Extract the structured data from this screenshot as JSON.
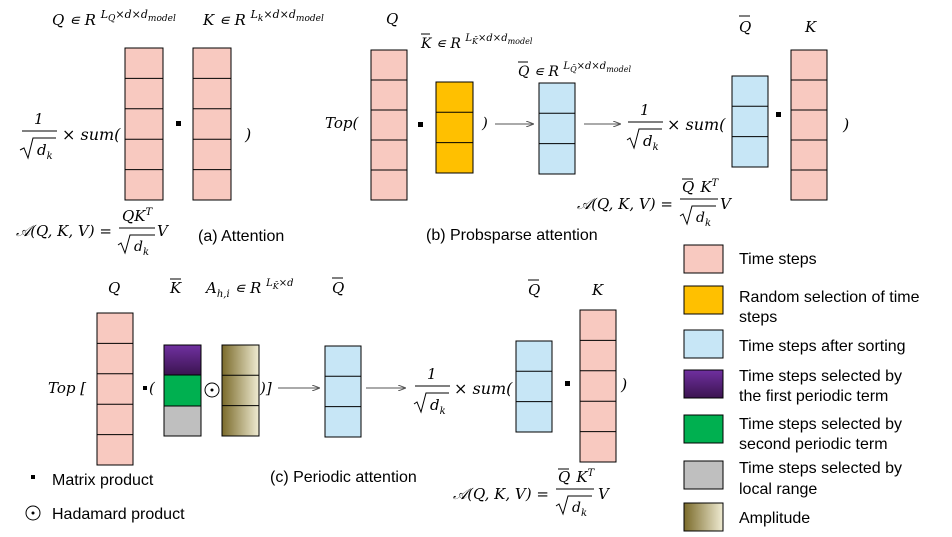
{
  "colors": {
    "time_steps": "#F8C9C0",
    "random": "#FFC000",
    "sorted": "#C7E6F6",
    "first_periodic_top": "#7030A0",
    "first_periodic_bottom": "#3B1450",
    "second_periodic": "#00B050",
    "local": "#BFBFBF",
    "amplitude_dark": "#7A6A2A",
    "amplitude_light": "#EFEBD2"
  },
  "symbols": {
    "Q": "Q",
    "K": "K",
    "Kbar": "K",
    "Qbar": "Q",
    "top": "Top",
    "one": "1",
    "sqrt_dk": "d",
    "sqrt_dk_sub": "k",
    "times_sum": "× sum(",
    "rparen": ")",
    "open_a": "Top(",
    "open_c": "Top [",
    "close_c": ")]",
    "dot": "·",
    "hadamard": "⊙",
    "A_prefix": "𝒜(Q, K, V) =",
    "V": "V",
    "QKT": "QK",
    "T": "T",
    "Q_expr_a": "Q ∊ R",
    "Q_expr_a_exp": "L",
    "Q_expr_a_sub": "Q",
    "Q_expr_a_rest": "×d×d",
    "dmodel_sub": "model",
    "K_expr_a": "K ∊ R",
    "K_expr_a_exp": "L",
    "K_expr_a_sub": "k",
    "K_expr_a_rest": "×d×d",
    "Kbar_expr": "K ∊ R",
    "Kbar_exp": "L",
    "Kbar_sub": "K̄",
    "Kbar_rest": "×d×d",
    "Qbar_expr": "Q ∊ R",
    "Qbar_exp": "L",
    "Qbar_sub": "Q̄",
    "Qbar_rest": "×d×d",
    "A_hi": "A",
    "A_hi_sub": "h,i",
    "A_hi_expr": " ∊ R",
    "A_hi_exp": "L",
    "A_hi_exp_sub": "K̄",
    "A_hi_rest": "×d"
  },
  "captions": {
    "a": "(a) Attention",
    "b": "(b) Probsparse attention",
    "c": "(c) Periodic attention"
  },
  "notes": {
    "matrix_product_symbol": "▪",
    "matrix_product": "Matrix product",
    "hadamard_symbol": "⊙",
    "hadamard_product": "Hadamard product"
  },
  "legend": [
    {
      "label": "Time steps",
      "color_key": "time_steps"
    },
    {
      "label": "Random selection of  time steps",
      "color_key": "random"
    },
    {
      "label": "Time steps after sorting",
      "color_key": "sorted"
    },
    {
      "label": "Time steps selected by the first periodic term",
      "color_key": "first_periodic"
    },
    {
      "label": "Time steps selected by second periodic term",
      "color_key": "second_periodic"
    },
    {
      "label": "Time steps selected by local range",
      "color_key": "local"
    },
    {
      "label": "Amplitude",
      "color_key": "amplitude"
    }
  ]
}
